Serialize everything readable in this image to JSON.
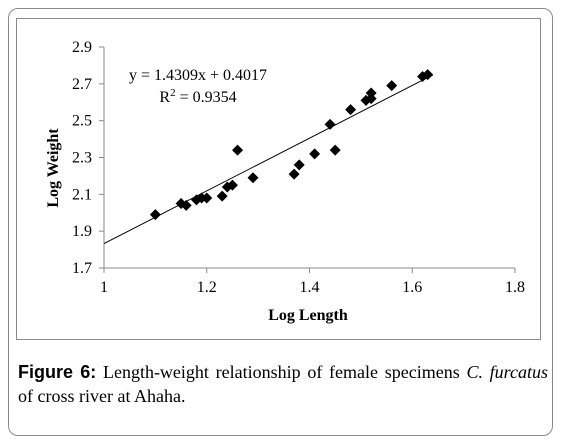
{
  "chart_data": {
    "type": "scatter",
    "xlabel": "Log Length",
    "ylabel": "Log Weight",
    "xlim": [
      1,
      1.8
    ],
    "ylim": [
      1.7,
      2.9
    ],
    "xticks": [
      "1",
      "1.2",
      "1.4",
      "1.6",
      "1.8"
    ],
    "yticks": [
      "1.7",
      "1.9",
      "2.1",
      "2.3",
      "2.5",
      "2.7",
      "2.9"
    ],
    "trendline": {
      "slope": 1.4309,
      "intercept": 0.4017
    },
    "annotations": [
      "y = 1.4309x + 0.4017",
      "R² = 0.9354"
    ],
    "grid": false,
    "legend": "none",
    "marker": "diamond",
    "marker_color": "#000000",
    "points": [
      {
        "x": 1.1,
        "y": 1.99
      },
      {
        "x": 1.15,
        "y": 2.05
      },
      {
        "x": 1.16,
        "y": 2.04
      },
      {
        "x": 1.18,
        "y": 2.07
      },
      {
        "x": 1.19,
        "y": 2.08
      },
      {
        "x": 1.2,
        "y": 2.08
      },
      {
        "x": 1.23,
        "y": 2.09
      },
      {
        "x": 1.24,
        "y": 2.14
      },
      {
        "x": 1.25,
        "y": 2.15
      },
      {
        "x": 1.26,
        "y": 2.34
      },
      {
        "x": 1.29,
        "y": 2.19
      },
      {
        "x": 1.37,
        "y": 2.21
      },
      {
        "x": 1.38,
        "y": 2.26
      },
      {
        "x": 1.41,
        "y": 2.32
      },
      {
        "x": 1.44,
        "y": 2.48
      },
      {
        "x": 1.45,
        "y": 2.34
      },
      {
        "x": 1.48,
        "y": 2.56
      },
      {
        "x": 1.51,
        "y": 2.61
      },
      {
        "x": 1.52,
        "y": 2.62
      },
      {
        "x": 1.52,
        "y": 2.65
      },
      {
        "x": 1.56,
        "y": 2.69
      },
      {
        "x": 1.62,
        "y": 2.74
      },
      {
        "x": 1.63,
        "y": 2.75
      }
    ]
  },
  "caption": {
    "label": "Figure 6:",
    "text_before": " Length-weight relationship of female specimens ",
    "species": "C. furcatus",
    "text_after": " of cross river at Ahaha."
  }
}
